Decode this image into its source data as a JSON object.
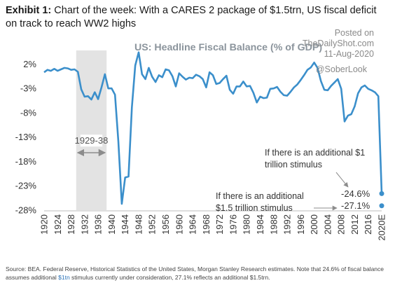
{
  "header": {
    "exhibit_label": "Exhibit 1:",
    "exhibit_text": "Chart of the week: With a CARES 2 package of $1.5trn, US fiscal deficit on track to reach WW2 highs"
  },
  "watermark": {
    "posted_on": "Posted on",
    "site": "TheDailyShot.com",
    "date": "11-Aug-2020",
    "handle": "@SoberLook"
  },
  "source": {
    "text_before": "Source: BEA. Federal Reserve, Historical Statistics of the United States, Morgan Stanley Research estimates. Note that 24.6% of fiscal balance assumes additional ",
    "highlight": "$1tn",
    "text_after": " stimulus currently under consideration, 27.1% reflects an additional $1.5trn."
  },
  "colors": {
    "line": "#3b8fcb",
    "shade": "#e3e3e3",
    "text": "#333333",
    "arrow": "#8c8c8c",
    "title": "#8b949c"
  },
  "chart_data": {
    "type": "line",
    "title": "US: Headline Fiscal Balance (% of GDP)",
    "xlabel": "",
    "ylabel": "",
    "xlim": [
      1920,
      2020
    ],
    "ylim": [
      -28,
      4.5
    ],
    "x_ticks": [
      "1920",
      "1924",
      "1928",
      "1932",
      "1936",
      "1940",
      "1944",
      "1948",
      "1952",
      "1956",
      "1960",
      "1964",
      "1968",
      "1972",
      "1976",
      "1980",
      "1984",
      "1988",
      "1992",
      "1996",
      "2000",
      "2004",
      "2008",
      "2012",
      "2016",
      "2020E"
    ],
    "y_ticks": [
      {
        "value": 2,
        "label": "2%"
      },
      {
        "value": -3,
        "label": "-3%"
      },
      {
        "value": -8,
        "label": "-8%"
      },
      {
        "value": -13,
        "label": "-13%"
      },
      {
        "value": -18,
        "label": "-18%"
      },
      {
        "value": -23,
        "label": "-23%"
      },
      {
        "value": -28,
        "label": "-28%"
      }
    ],
    "grid": false,
    "shaded_period": {
      "label": "1929-38",
      "start": 1929.5,
      "end": 1938.5
    },
    "series": [
      {
        "values": [
          [
            1920,
            0.3
          ],
          [
            1921,
            0.8
          ],
          [
            1922,
            0.6
          ],
          [
            1923,
            1.0
          ],
          [
            1924,
            0.6
          ],
          [
            1925,
            0.9
          ],
          [
            1926,
            1.2
          ],
          [
            1927,
            1.1
          ],
          [
            1928,
            0.8
          ],
          [
            1929,
            0.9
          ],
          [
            1930,
            0.4
          ],
          [
            1931,
            -3.2
          ],
          [
            1932,
            -4.7
          ],
          [
            1933,
            -4.6
          ],
          [
            1934,
            -5.3
          ],
          [
            1935,
            -3.8
          ],
          [
            1936,
            -5.2
          ],
          [
            1937,
            -2.8
          ],
          [
            1938,
            -0.1
          ],
          [
            1939,
            -3.0
          ],
          [
            1940,
            -3.0
          ],
          [
            1941,
            -4.3
          ],
          [
            1942,
            -13.9
          ],
          [
            1943,
            -26.7
          ],
          [
            1944,
            -21.3
          ],
          [
            1945,
            -21.1
          ],
          [
            1946,
            -6.9
          ],
          [
            1947,
            1.7
          ],
          [
            1948,
            4.4
          ],
          [
            1949,
            -0.1
          ],
          [
            1950,
            -1.1
          ],
          [
            1951,
            1.2
          ],
          [
            1952,
            -0.6
          ],
          [
            1953,
            -1.7
          ],
          [
            1954,
            -0.3
          ],
          [
            1955,
            -0.7
          ],
          [
            1956,
            0.9
          ],
          [
            1957,
            0.7
          ],
          [
            1958,
            -0.5
          ],
          [
            1959,
            -2.6
          ],
          [
            1960,
            0.1
          ],
          [
            1961,
            -0.6
          ],
          [
            1962,
            -1.2
          ],
          [
            1963,
            -0.8
          ],
          [
            1964,
            -0.9
          ],
          [
            1965,
            -0.2
          ],
          [
            1966,
            -0.5
          ],
          [
            1967,
            -1.1
          ],
          [
            1968,
            -2.8
          ],
          [
            1969,
            0.3
          ],
          [
            1970,
            -0.3
          ],
          [
            1971,
            -2.1
          ],
          [
            1972,
            -1.9
          ],
          [
            1973,
            -1.1
          ],
          [
            1974,
            -0.4
          ],
          [
            1975,
            -3.3
          ],
          [
            1976,
            -4.1
          ],
          [
            1977,
            -2.6
          ],
          [
            1978,
            -2.6
          ],
          [
            1979,
            -1.6
          ],
          [
            1980,
            -2.6
          ],
          [
            1981,
            -2.5
          ],
          [
            1982,
            -3.9
          ],
          [
            1983,
            -5.9
          ],
          [
            1984,
            -4.7
          ],
          [
            1985,
            -5.0
          ],
          [
            1986,
            -4.9
          ],
          [
            1987,
            -3.1
          ],
          [
            1988,
            -3.0
          ],
          [
            1989,
            -2.7
          ],
          [
            1990,
            -3.7
          ],
          [
            1991,
            -4.4
          ],
          [
            1992,
            -4.5
          ],
          [
            1993,
            -3.7
          ],
          [
            1994,
            -2.8
          ],
          [
            1995,
            -2.2
          ],
          [
            1996,
            -1.3
          ],
          [
            1997,
            -0.3
          ],
          [
            1998,
            0.8
          ],
          [
            1999,
            1.3
          ],
          [
            2000,
            2.3
          ],
          [
            2001,
            1.2
          ],
          [
            2002,
            -1.5
          ],
          [
            2003,
            -3.3
          ],
          [
            2004,
            -3.4
          ],
          [
            2005,
            -2.5
          ],
          [
            2006,
            -1.8
          ],
          [
            2007,
            -1.1
          ],
          [
            2008,
            -3.1
          ],
          [
            2009,
            -9.8
          ],
          [
            2010,
            -8.6
          ],
          [
            2011,
            -8.3
          ],
          [
            2012,
            -6.7
          ],
          [
            2013,
            -4.0
          ],
          [
            2014,
            -2.8
          ],
          [
            2015,
            -2.4
          ],
          [
            2016,
            -3.1
          ],
          [
            2017,
            -3.4
          ],
          [
            2018,
            -3.8
          ],
          [
            2019,
            -4.6
          ],
          [
            2020,
            -24.6
          ]
        ]
      }
    ],
    "points": [
      {
        "x": 2020,
        "y": -24.6,
        "label": "-24.6%"
      },
      {
        "x": 2020,
        "y": -27.1,
        "label": "-27.1%"
      }
    ],
    "annotations": [
      {
        "lines": [
          "If there is an additional $1",
          "trillion stimulus"
        ],
        "points_to": -24.6
      },
      {
        "lines": [
          "If there is an additional",
          "$1.5 trillion stimulus"
        ],
        "points_to": -27.1
      }
    ]
  }
}
